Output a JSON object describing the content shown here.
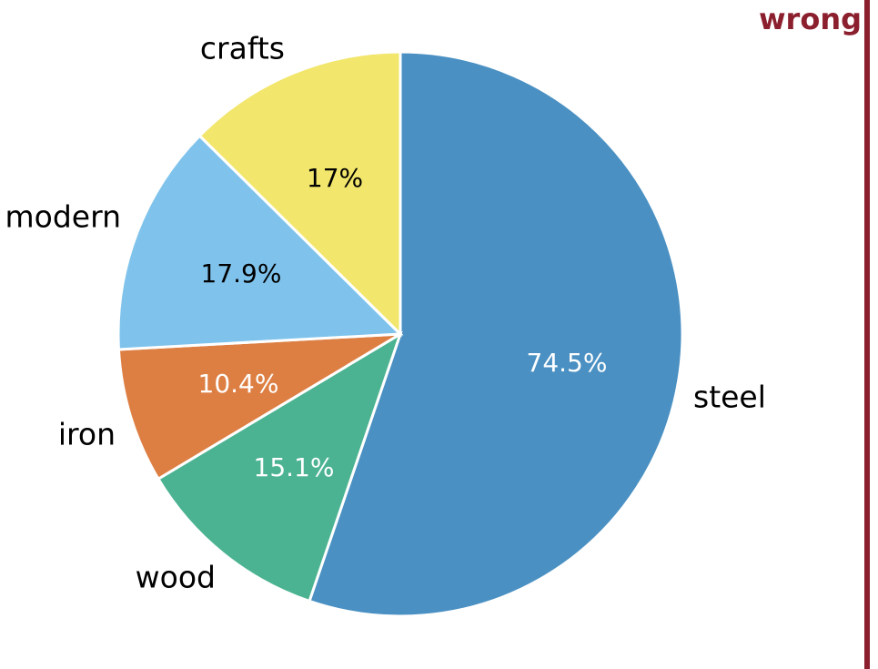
{
  "tag": {
    "text": "wrong",
    "color": "#8b1f2e"
  },
  "chart_data": {
    "type": "pie",
    "slices": [
      {
        "name": "steel",
        "label": "74.5%",
        "color": "#4a90c2",
        "text_color": "#ffffff"
      },
      {
        "name": "wood",
        "label": "15.1%",
        "color": "#4bb391",
        "text_color": "#ffffff"
      },
      {
        "name": "iron",
        "label": "10.4%",
        "color": "#dd7f43",
        "text_color": "#ffffff"
      },
      {
        "name": "modern",
        "label": "17.9%",
        "color": "#7fc3ec",
        "text_color": "#000000"
      },
      {
        "name": "crafts",
        "label": "17%",
        "color": "#f2e66c",
        "text_color": "#000000"
      }
    ],
    "values": [
      74.5,
      15.1,
      10.4,
      17.9,
      17
    ]
  }
}
